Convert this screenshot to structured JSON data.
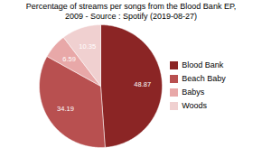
{
  "chart_data": {
    "type": "pie",
    "title": "Percentage of streams per songs from the Blood Bank EP,\n2009 - Source : Spotify (2019-08-27)",
    "categories": [
      "Blood Bank",
      "Beach Baby",
      "Babys",
      "Woods"
    ],
    "values": [
      48.87,
      34.19,
      6.59,
      10.35
    ],
    "colors": [
      "#8B2525",
      "#B85050",
      "#E8A8A8",
      "#F0D0D0"
    ],
    "data_labels": true,
    "legend": "right"
  }
}
